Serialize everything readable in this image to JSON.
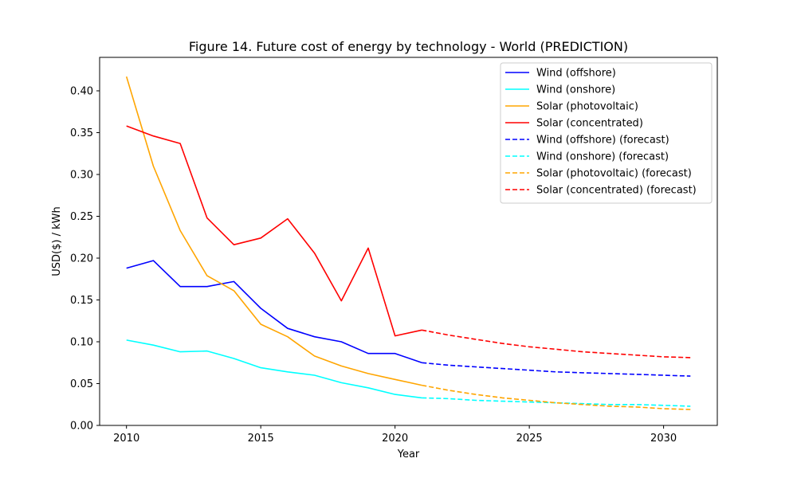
{
  "chart_data": {
    "type": "line",
    "title": "Figure 14. Future cost of energy by technology - World (PREDICTION)",
    "xlabel": "Year",
    "ylabel": "USD($) / kWh",
    "xlim": [
      2009,
      2032
    ],
    "ylim": [
      0,
      0.44
    ],
    "xticks": [
      2010,
      2015,
      2020,
      2025,
      2030
    ],
    "yticks": [
      0.0,
      0.05,
      0.1,
      0.15,
      0.2,
      0.25,
      0.3,
      0.35,
      0.4
    ],
    "ytick_labels": [
      "0.00",
      "0.05",
      "0.10",
      "0.15",
      "0.20",
      "0.25",
      "0.30",
      "0.35",
      "0.40"
    ],
    "grid": false,
    "legend_position": "top-right",
    "series": [
      {
        "name": "Wind (offshore)",
        "color": "#0000ff",
        "style": "solid",
        "x": [
          2010,
          2011,
          2012,
          2013,
          2014,
          2015,
          2016,
          2017,
          2018,
          2019,
          2020,
          2021
        ],
        "y": [
          0.188,
          0.197,
          0.166,
          0.166,
          0.172,
          0.14,
          0.116,
          0.106,
          0.1,
          0.086,
          0.086,
          0.075
        ]
      },
      {
        "name": "Wind (onshore)",
        "color": "#00ffff",
        "style": "solid",
        "x": [
          2010,
          2011,
          2012,
          2013,
          2014,
          2015,
          2016,
          2017,
          2018,
          2019,
          2020,
          2021
        ],
        "y": [
          0.102,
          0.096,
          0.088,
          0.089,
          0.08,
          0.069,
          0.064,
          0.06,
          0.051,
          0.045,
          0.037,
          0.033
        ]
      },
      {
        "name": "Solar (photovoltaic)",
        "color": "#ffa500",
        "style": "solid",
        "x": [
          2010,
          2011,
          2012,
          2013,
          2014,
          2015,
          2016,
          2017,
          2018,
          2019,
          2020,
          2021
        ],
        "y": [
          0.417,
          0.31,
          0.233,
          0.179,
          0.161,
          0.121,
          0.106,
          0.083,
          0.071,
          0.062,
          0.055,
          0.048
        ]
      },
      {
        "name": "Solar (concentrated)",
        "color": "#ff0000",
        "style": "solid",
        "x": [
          2010,
          2011,
          2012,
          2013,
          2014,
          2015,
          2016,
          2017,
          2018,
          2019,
          2020,
          2021
        ],
        "y": [
          0.358,
          0.346,
          0.337,
          0.248,
          0.216,
          0.224,
          0.247,
          0.206,
          0.149,
          0.212,
          0.107,
          0.114
        ]
      },
      {
        "name": "Wind (offshore) (forecast)",
        "color": "#0000ff",
        "style": "dashed",
        "x": [
          2021,
          2022,
          2023,
          2024,
          2025,
          2026,
          2027,
          2028,
          2029,
          2030,
          2031
        ],
        "y": [
          0.075,
          0.072,
          0.07,
          0.068,
          0.066,
          0.064,
          0.063,
          0.062,
          0.061,
          0.06,
          0.059
        ]
      },
      {
        "name": "Wind (onshore) (forecast)",
        "color": "#00ffff",
        "style": "dashed",
        "x": [
          2021,
          2022,
          2023,
          2024,
          2025,
          2026,
          2027,
          2028,
          2029,
          2030,
          2031
        ],
        "y": [
          0.033,
          0.032,
          0.03,
          0.029,
          0.028,
          0.027,
          0.026,
          0.025,
          0.025,
          0.024,
          0.023
        ]
      },
      {
        "name": "Solar (photovoltaic) (forecast)",
        "color": "#ffa500",
        "style": "dashed",
        "x": [
          2021,
          2022,
          2023,
          2024,
          2025,
          2026,
          2027,
          2028,
          2029,
          2030,
          2031
        ],
        "y": [
          0.048,
          0.042,
          0.037,
          0.033,
          0.03,
          0.027,
          0.025,
          0.023,
          0.022,
          0.02,
          0.019
        ]
      },
      {
        "name": "Solar (concentrated) (forecast)",
        "color": "#ff0000",
        "style": "dashed",
        "x": [
          2021,
          2022,
          2023,
          2024,
          2025,
          2026,
          2027,
          2028,
          2029,
          2030,
          2031
        ],
        "y": [
          0.114,
          0.108,
          0.103,
          0.098,
          0.094,
          0.091,
          0.088,
          0.086,
          0.084,
          0.082,
          0.081
        ]
      }
    ]
  }
}
